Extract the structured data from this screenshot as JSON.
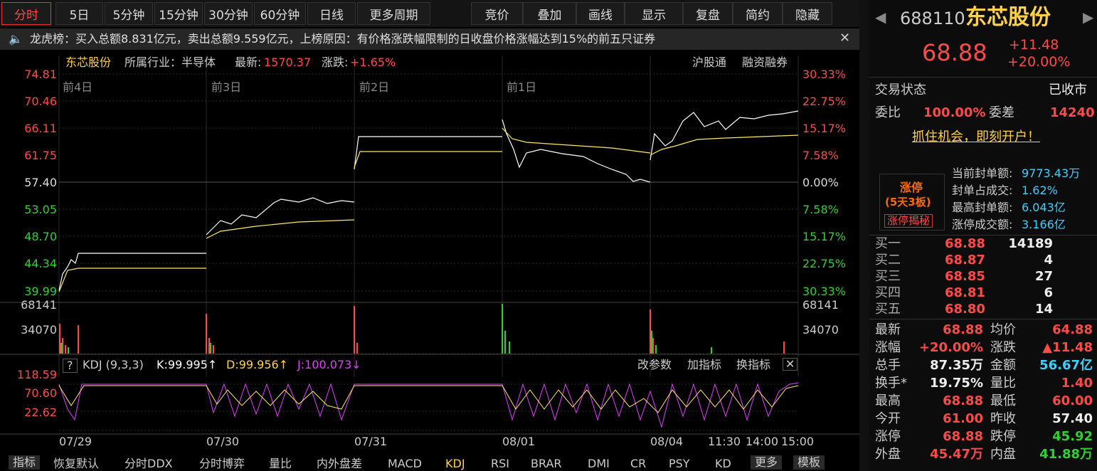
{
  "toolbar": {
    "tabs": [
      "分时",
      "5日",
      "5分钟",
      "15分钟",
      "30分钟",
      "60分钟",
      "日线",
      "更多周期"
    ],
    "tools": [
      "竞价",
      "叠加",
      "画线",
      "显示",
      "复盘",
      "简约",
      "隐藏"
    ]
  },
  "notice": "龙虎榜：买入总额8.831亿元，卖出总额9.559亿元，上榜原因：有价格涨跌幅限制的日收盘价格涨幅达到15%的前五只证券",
  "chart_header": {
    "name": "东芯股份",
    "industry": "所属行业：半导体",
    "latest_label": "最新:",
    "latest": "1570.37",
    "change_label": "涨跌:",
    "change": "+1.65%",
    "links": [
      "沪股通",
      "融资融券"
    ]
  },
  "price_axis": {
    "left": [
      "74.81",
      "70.46",
      "66.11",
      "61.75",
      "57.40",
      "53.05",
      "48.70",
      "44.34",
      "39.99"
    ],
    "right": [
      "30.33%",
      "22.75%",
      "15.17%",
      "7.58%",
      "0.00%",
      "7.58%",
      "15.17%",
      "22.75%",
      "30.33%"
    ]
  },
  "day_labels": [
    "前4日",
    "前3日",
    "前2日",
    "前1日"
  ],
  "volume_axis": [
    "68141",
    "34070"
  ],
  "kdj": {
    "help": "?",
    "name": "KDJ (9,3,3)",
    "k": "K:99.995↑",
    "d": "D:99.956↑",
    "j": "J:100.073↓",
    "actions": [
      "改参数",
      "加指标",
      "换指标"
    ],
    "axis": [
      "118.59",
      "70.60",
      "22.62"
    ]
  },
  "time_axis": [
    "07/29",
    "07/30",
    "07/31",
    "08/01",
    "08/04",
    "11:30",
    "14:00",
    "15:00"
  ],
  "bottom_tabs": [
    "指标",
    "恢复默认",
    "分时DDX",
    "分时博弈",
    "量比",
    "内外盘差",
    "MACD",
    "KDJ",
    "RSI",
    "BRAR",
    "DMI",
    "CR",
    "PSY",
    "KD",
    "更多",
    "模板"
  ],
  "quote": {
    "code": "688110",
    "name": "东芯股份",
    "price": "68.88",
    "change": "+11.48",
    "pct": "+20.00%"
  },
  "status": {
    "label": "交易状态",
    "value": "已收市"
  },
  "ratio": {
    "label": "委比",
    "value": "100.00%",
    "diff_label": "委差",
    "diff": "14240"
  },
  "promo": "抓住机会，即刻开户！",
  "limit_up": {
    "title": "涨停",
    "streak": "(5天3板)",
    "button": "涨停揭秘",
    "stats": [
      [
        "当前封单额:",
        "9773.43万"
      ],
      [
        "封单占成交:",
        "1.62%"
      ],
      [
        "最高封单额:",
        "6.043亿"
      ],
      [
        "涨停成交额:",
        "3.166亿"
      ]
    ]
  },
  "order_book": [
    [
      "买一",
      "68.88",
      "14189"
    ],
    [
      "买二",
      "68.87",
      "4"
    ],
    [
      "买三",
      "68.85",
      "27"
    ],
    [
      "买四",
      "68.81",
      "6"
    ],
    [
      "买五",
      "68.80",
      "14"
    ]
  ],
  "stats": [
    [
      "最新",
      "68.88",
      "均价",
      "64.88"
    ],
    [
      "涨幅",
      "+20.00%",
      "涨跌",
      "▲11.48"
    ],
    [
      "总手",
      "87.35万",
      "金额",
      "56.67亿"
    ],
    [
      "换手*",
      "19.75%",
      "量比",
      "1.40"
    ],
    [
      "最高",
      "68.88",
      "最低",
      "60.00"
    ],
    [
      "今开",
      "61.00",
      "昨收",
      "57.40"
    ],
    [
      "涨停",
      "68.88",
      "跌停",
      "45.92"
    ],
    [
      "外盘",
      "45.47万",
      "内盘",
      "41.88万"
    ]
  ]
}
